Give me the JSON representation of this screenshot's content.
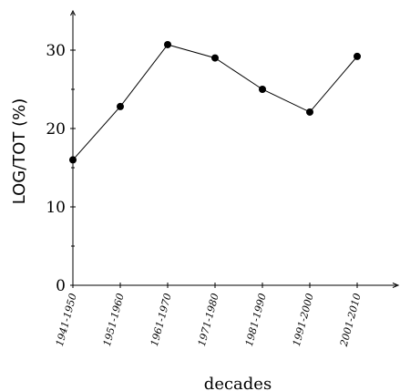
{
  "chart_data": {
    "type": "line",
    "title": "",
    "xlabel": "decades",
    "ylabel": "LOG/TOT (%)",
    "categories": [
      "1941-1950",
      "1951-1960",
      "1961-1970",
      "1971-1980",
      "1981-1990",
      "1991-2000",
      "2001-2010"
    ],
    "series": [
      {
        "values": [
          16.0,
          22.8,
          30.7,
          29.0,
          25.0,
          22.1,
          29.2
        ]
      }
    ],
    "ylim": [
      0,
      35
    ],
    "yticks": [
      0,
      10,
      20,
      30
    ],
    "ytick_labels": [
      "0",
      "10",
      "20",
      "30"
    ],
    "grid": false,
    "legend": "none",
    "line_color": "#000000",
    "marker": "filled-circle"
  }
}
